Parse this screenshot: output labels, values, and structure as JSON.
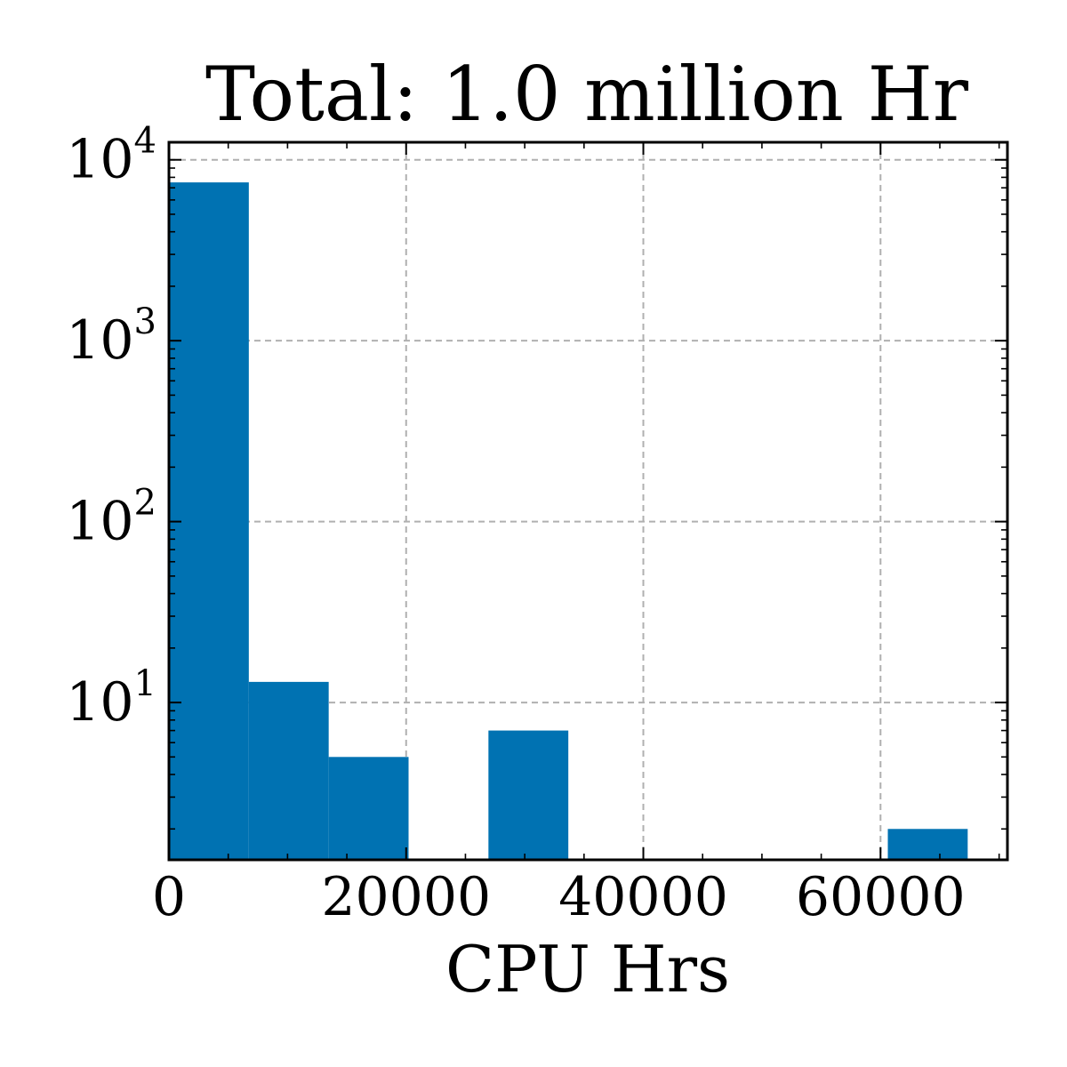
{
  "chart_data": {
    "type": "bar",
    "title": "Total: 1.0 million Hr",
    "xlabel": "CPU Hrs",
    "ylabel": "",
    "xlim": [
      0,
      70700
    ],
    "ylim": [
      1.35,
      12500
    ],
    "yscale": "log",
    "grid": true,
    "bin_edges": [
      0,
      6735,
      13470,
      20205,
      26940,
      33675,
      40410,
      47145,
      53880,
      60615,
      67350
    ],
    "values": [
      7500,
      13,
      5,
      0,
      7,
      0,
      0,
      0,
      0,
      2
    ],
    "bar_color": "#0072b2",
    "x_ticks": [
      0,
      20000,
      40000,
      60000
    ],
    "x_tick_labels": [
      "0",
      "20000",
      "40000",
      "60000"
    ],
    "y_ticks": [
      {
        "value": 10,
        "base": "10",
        "exp": "1"
      },
      {
        "value": 100,
        "base": "10",
        "exp": "2"
      },
      {
        "value": 1000,
        "base": "10",
        "exp": "3"
      },
      {
        "value": 10000,
        "base": "10",
        "exp": "4"
      }
    ]
  }
}
